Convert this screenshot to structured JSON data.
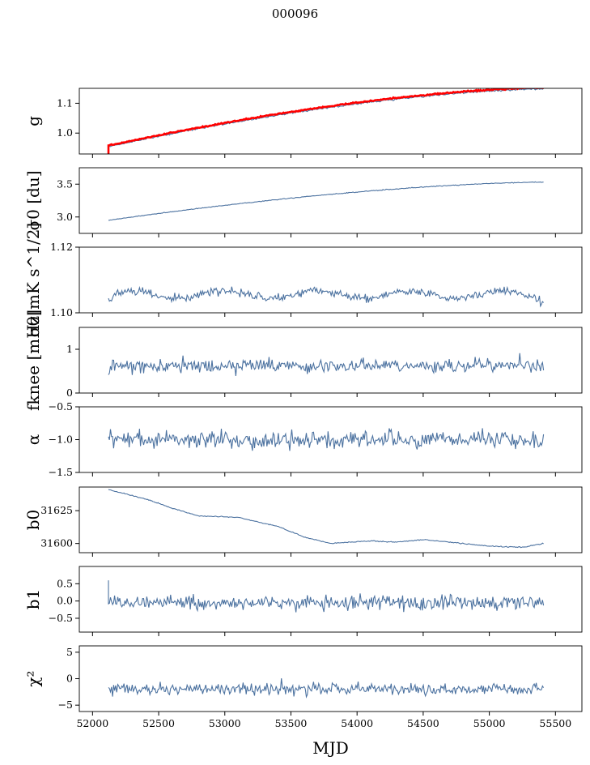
{
  "suptitle": "000096",
  "colors": {
    "series": "#4c72a0",
    "overlay": "#ff0000",
    "axis": "#000000"
  },
  "chart_data": {
    "type": "line",
    "shared_x": {
      "label": "MJD",
      "range": [
        51900,
        55700
      ],
      "ticks": [
        52000,
        52500,
        53000,
        53500,
        54000,
        54500,
        55000,
        55500
      ],
      "tick_labels": [
        "52000",
        "52500",
        "53000",
        "53500",
        "54000",
        "54500",
        "55000",
        "55500"
      ],
      "data_range": [
        52120,
        55410
      ]
    },
    "grid": false,
    "panels": [
      {
        "ylabel": "g",
        "ylim": [
          0.93,
          1.15
        ],
        "yticks": [
          1.0,
          1.1
        ],
        "ytick_labels": [
          "1.0",
          "1.1"
        ],
        "series": [
          {
            "role": "line",
            "color": "#4c72a0",
            "start": 0.955,
            "end": 1.148,
            "shape": "rise_concave",
            "noise": 0.002
          },
          {
            "role": "overlay",
            "color": "#ff0000",
            "start": 0.958,
            "end": 1.152,
            "shape": "rise_concave",
            "noise": 0.0015,
            "initial_spike": [
              0.93,
              0.962
            ]
          }
        ]
      },
      {
        "ylabel": "σ0 [du]",
        "ylim": [
          2.75,
          3.75
        ],
        "yticks": [
          3.0,
          3.5
        ],
        "ytick_labels": [
          "3.0",
          "3.5"
        ],
        "series": [
          {
            "role": "line",
            "color": "#4c72a0",
            "start": 2.95,
            "end": 3.53,
            "shape": "rise_concave",
            "noise": 0.004
          }
        ]
      },
      {
        "ylabel": "σ0[mK s^1/2]",
        "ylim": [
          1.1,
          1.12
        ],
        "yticks": [
          1.1,
          1.12
        ],
        "ytick_labels": [
          "1.10",
          "1.12"
        ],
        "series": [
          {
            "role": "line",
            "color": "#4c72a0",
            "base": 1.1055,
            "amp": 0.0012,
            "noise": 0.0009,
            "shape": "wavy_flat",
            "period_days": 700
          }
        ]
      },
      {
        "ylabel": "fknee [mHz]",
        "ylim": [
          0,
          1.5
        ],
        "yticks": [
          0,
          1
        ],
        "ytick_labels": [
          "0",
          "1"
        ],
        "series": [
          {
            "role": "line",
            "color": "#4c72a0",
            "base": 0.62,
            "amp": 0.0,
            "noise": 0.12,
            "shape": "noisy_flat"
          }
        ]
      },
      {
        "ylabel": "α",
        "ylim": [
          -1.5,
          -0.5
        ],
        "yticks": [
          -1.5,
          -1.0,
          -0.5
        ],
        "ytick_labels": [
          "−1.5",
          "−1.0",
          "−0.5"
        ],
        "series": [
          {
            "role": "line",
            "color": "#4c72a0",
            "base": -1.0,
            "amp": 0.0,
            "noise": 0.09,
            "shape": "noisy_flat"
          }
        ]
      },
      {
        "ylabel": "b0",
        "ylim": [
          31593,
          31643
        ],
        "yticks": [
          31600,
          31625
        ],
        "ytick_labels": [
          "31600",
          "31625"
        ],
        "series": [
          {
            "role": "line",
            "color": "#4c72a0",
            "shape": "knots",
            "noise": 0.25,
            "knots": [
              [
                52120,
                31641
              ],
              [
                52400,
                31634
              ],
              [
                52600,
                31627
              ],
              [
                52800,
                31621
              ],
              [
                53100,
                31620
              ],
              [
                53400,
                31613
              ],
              [
                53600,
                31605
              ],
              [
                53800,
                31600
              ],
              [
                54100,
                31602
              ],
              [
                54300,
                31601
              ],
              [
                54500,
                31603
              ],
              [
                54700,
                31601
              ],
              [
                55000,
                31598
              ],
              [
                55250,
                31597
              ],
              [
                55410,
                31600
              ]
            ]
          }
        ]
      },
      {
        "ylabel": "b1",
        "ylim": [
          -0.9,
          1.0
        ],
        "yticks": [
          -0.5,
          0.0,
          0.5
        ],
        "ytick_labels": [
          "−0.5",
          "0.0",
          "0.5"
        ],
        "series": [
          {
            "role": "line",
            "color": "#4c72a0",
            "base": -0.05,
            "amp": 0.0,
            "noise": 0.14,
            "shape": "noisy_trend",
            "initial_spike": [
              0.6,
              -0.1
            ]
          }
        ]
      },
      {
        "ylabel": "χ²",
        "ylim": [
          -6.2,
          6.2
        ],
        "yticks": [
          -5,
          0,
          5
        ],
        "ytick_labels": [
          "−5",
          "0",
          "5"
        ],
        "series": [
          {
            "role": "line",
            "color": "#4c72a0",
            "base": -2.0,
            "amp": 0.0,
            "noise": 0.75,
            "shape": "noisy_trend"
          }
        ]
      }
    ]
  }
}
